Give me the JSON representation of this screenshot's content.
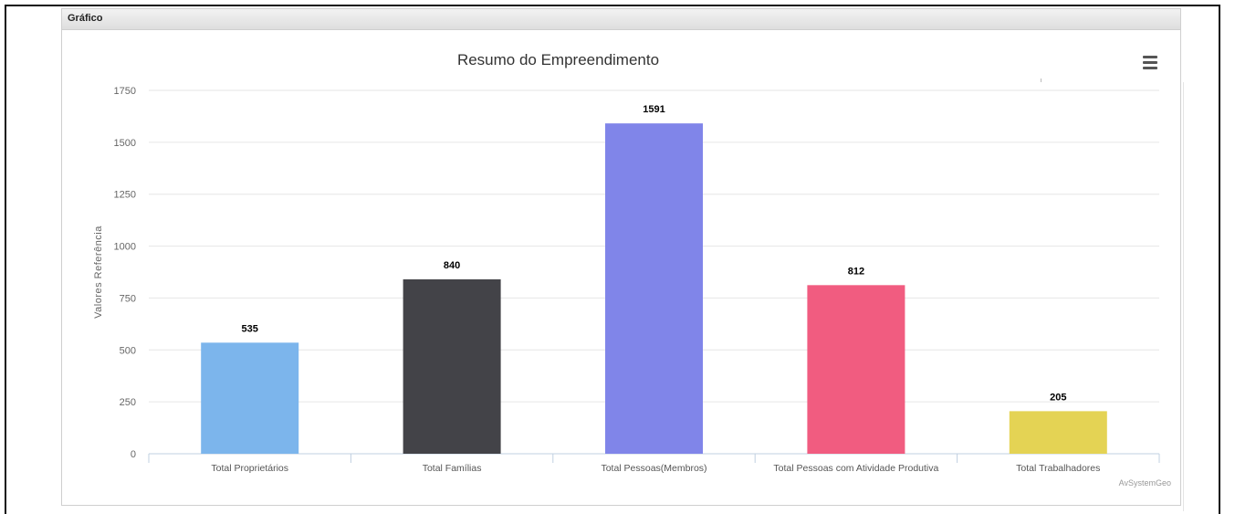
{
  "panel": {
    "title": "Gráfico",
    "menu_icon": "hamburger-menu-icon",
    "credit": "AvSystemGeo"
  },
  "chart_data": {
    "type": "bar",
    "title": "Resumo do Empreendimento",
    "xlabel": "",
    "ylabel": "Valores Referência",
    "ylim": [
      0,
      1750
    ],
    "yticks": [
      0,
      250,
      500,
      750,
      1000,
      1250,
      1500,
      1750
    ],
    "grid": true,
    "legend": "none",
    "categories": [
      "Total Proprietários",
      "Total Famílias",
      "Total Pessoas(Membros)",
      "Total Pessoas com Atividade Produtiva",
      "Total Trabalhadores"
    ],
    "values": [
      535,
      840,
      1591,
      812,
      205
    ],
    "colors": [
      "#7cb5ec",
      "#434348",
      "#8085e9",
      "#f15c80",
      "#e4d354"
    ]
  }
}
